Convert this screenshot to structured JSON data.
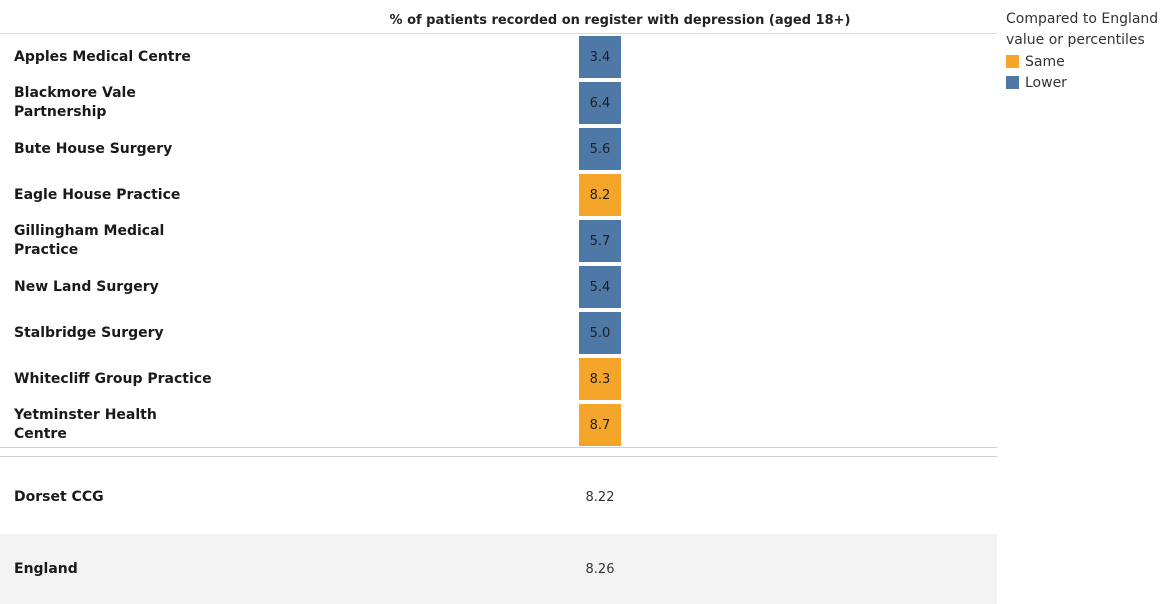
{
  "header": {
    "title": "% of patients recorded on register with depression (aged 18+)"
  },
  "colors": {
    "Same": "#f5a62a",
    "Lower": "#4e79a7"
  },
  "legend": {
    "title_line1": "Compared to England",
    "title_line2": "value or percentiles",
    "items": [
      {
        "label": "Same",
        "category": "Same"
      },
      {
        "label": "Lower",
        "category": "Lower"
      }
    ]
  },
  "chart_data": {
    "type": "table",
    "title": "% of patients recorded on register with depression (aged 18+)",
    "rows": [
      {
        "name": "Apples Medical Centre",
        "value": "3.4",
        "category": "Lower"
      },
      {
        "name": "Blackmore Vale Partnership",
        "value": "6.4",
        "category": "Lower"
      },
      {
        "name": "Bute House Surgery",
        "value": "5.6",
        "category": "Lower"
      },
      {
        "name": "Eagle House Practice",
        "value": "8.2",
        "category": "Same"
      },
      {
        "name": "Gillingham Medical Practice",
        "value": "5.7",
        "category": "Lower"
      },
      {
        "name": "New Land Surgery",
        "value": "5.4",
        "category": "Lower"
      },
      {
        "name": "Stalbridge Surgery",
        "value": "5.0",
        "category": "Lower"
      },
      {
        "name": "Whitecliff Group Practice",
        "value": "8.3",
        "category": "Same"
      },
      {
        "name": "Yetminster Health Centre",
        "value": "8.7",
        "category": "Same"
      }
    ],
    "summary": [
      {
        "name": "Dorset CCG",
        "value": "8.22"
      },
      {
        "name": "England",
        "value": "8.26"
      }
    ]
  }
}
